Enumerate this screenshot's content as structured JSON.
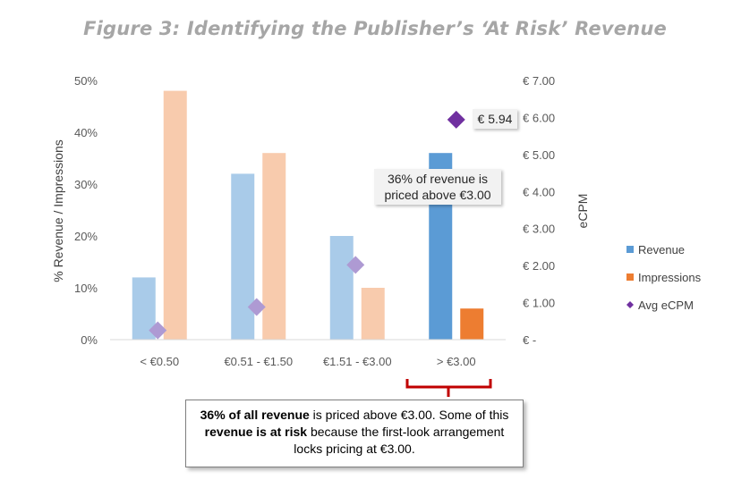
{
  "title": "Figure 3:  Identifying the Publisher’s ‘At Risk’ Revenue",
  "chart_data": {
    "type": "bar",
    "categories": [
      "< €0.50",
      "€0.51 - €1.50",
      "€1.51 - €3.00",
      "> €3.00"
    ],
    "series": [
      {
        "name": "Revenue",
        "type": "bar",
        "axis": "left",
        "values": [
          12,
          32,
          20,
          36
        ],
        "color": "#a9cbe9",
        "highlight_color": "#5b9bd5",
        "highlight_index": 3
      },
      {
        "name": "Impressions",
        "type": "bar",
        "axis": "left",
        "values": [
          48,
          36,
          10,
          6
        ],
        "color": "#f8cbad",
        "highlight_color": "#ed7d31",
        "highlight_index": 3
      },
      {
        "name": "Avg eCPM",
        "type": "scatter",
        "axis": "right",
        "values": [
          0.25,
          0.88,
          2.02,
          5.94
        ],
        "color": "#ae9ad3",
        "highlight_color": "#7030a0",
        "highlight_index": 3
      }
    ],
    "y_left": {
      "label": "% Revenue / Impressions",
      "range": [
        0,
        50
      ],
      "ticks": [
        0,
        10,
        20,
        30,
        40,
        50
      ],
      "tick_labels": [
        "0%",
        "10%",
        "20%",
        "30%",
        "40%",
        "50%"
      ]
    },
    "y_right": {
      "label": "eCPM",
      "range": [
        0,
        7
      ],
      "ticks": [
        0,
        1,
        2,
        3,
        4,
        5,
        6,
        7
      ],
      "tick_labels": [
        "€ -",
        "€ 1.00",
        "€ 2.00",
        "€ 3.00",
        "€ 4.00",
        "€ 5.00",
        "€ 6.00",
        "€ 7.00"
      ]
    },
    "grid": false,
    "legend": "right",
    "annotations": {
      "revenue_callout": "36% of revenue is priced above €3.00",
      "ecpm_callout": "€ 5.94"
    }
  },
  "bottom_note": {
    "bold_1": "36% of all revenue",
    "text_1": " is priced above €3.00.  Some of this ",
    "bold_2": "revenue is at risk",
    "text_2": " because the first-look arrangement locks pricing at €3.00."
  },
  "colors": {
    "title": "#a6a6a6",
    "bracket": "#c00000"
  }
}
